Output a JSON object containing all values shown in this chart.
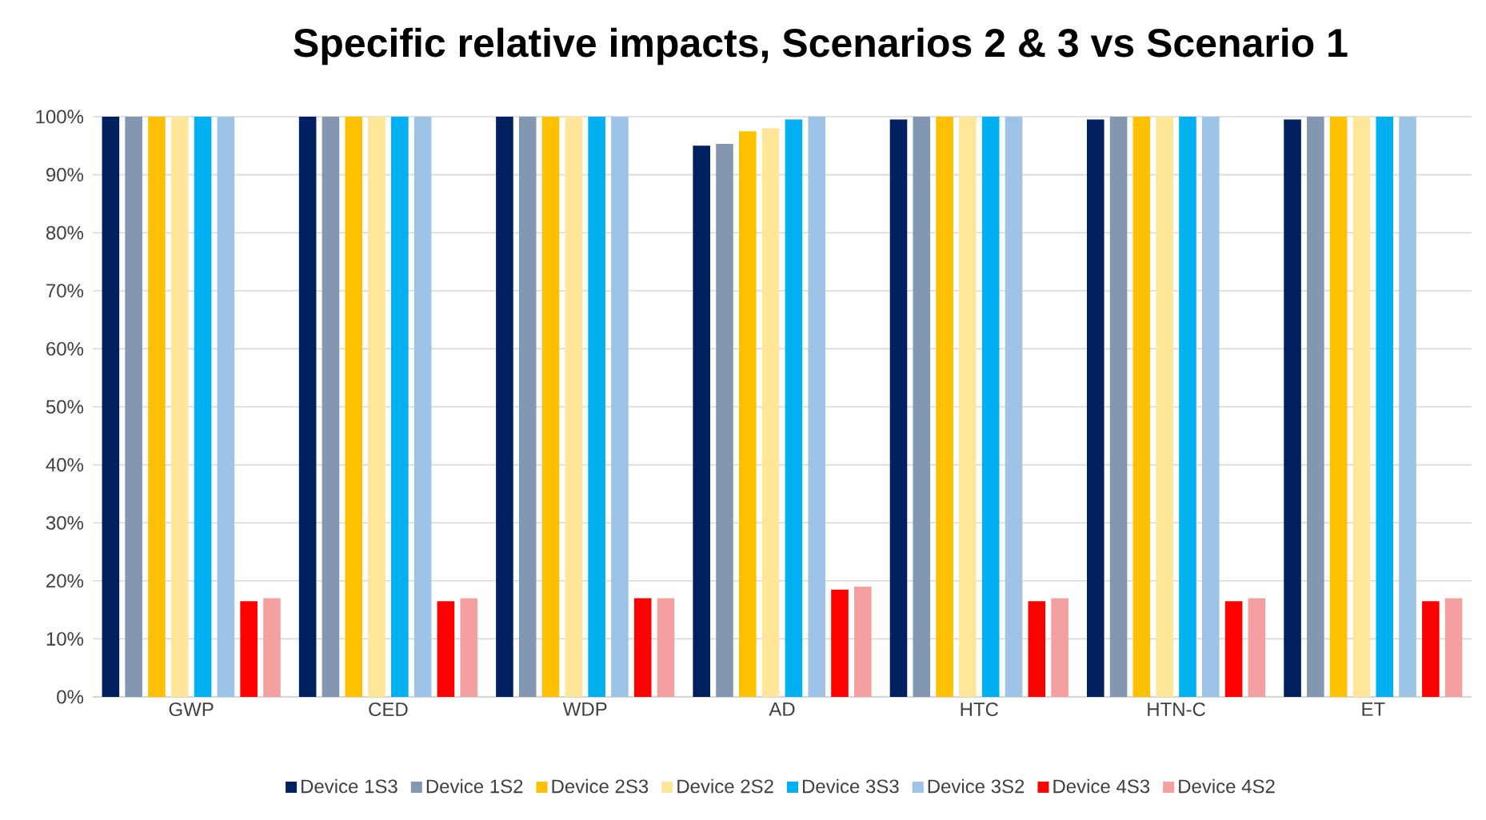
{
  "chart_data": {
    "type": "bar",
    "title": "Specific relative impacts, Scenarios 2 & 3 vs Scenario 1",
    "categories": [
      "GWP",
      "CED",
      "WDP",
      "AD",
      "HTC",
      "HTN-C",
      "ET"
    ],
    "series": [
      {
        "name": "Device 1S3",
        "color": "#002060",
        "values": [
          100,
          100,
          100,
          95,
          99.5,
          99.5,
          99.5
        ]
      },
      {
        "name": "Device 1S2",
        "color": "#8497b0",
        "values": [
          100,
          100,
          100,
          95.3,
          100,
          100,
          100
        ]
      },
      {
        "name": "Device 2S3",
        "color": "#ffc000",
        "values": [
          100,
          100,
          100,
          97.5,
          100,
          100,
          100
        ]
      },
      {
        "name": "Device 2S2",
        "color": "#ffe699",
        "values": [
          100,
          100,
          100,
          98,
          100,
          100,
          100
        ]
      },
      {
        "name": "Device 3S3",
        "color": "#00b0f0",
        "values": [
          100,
          100,
          100,
          99.5,
          100,
          100,
          100
        ]
      },
      {
        "name": "Device 3S2",
        "color": "#9dc3e6",
        "values": [
          100,
          100,
          100,
          100,
          100,
          100,
          100
        ]
      },
      {
        "name": "Device 4S3",
        "color": "#ff0000",
        "values": [
          16.5,
          16.5,
          17,
          18.5,
          16.5,
          16.5,
          16.5
        ]
      },
      {
        "name": "Device 4S2",
        "color": "#f4a0a0",
        "values": [
          17,
          17,
          17,
          19,
          17,
          17,
          17
        ]
      }
    ],
    "ylim": [
      0,
      100
    ],
    "yticks": [
      {
        "value": 0,
        "label": "0%"
      },
      {
        "value": 10,
        "label": "10%"
      },
      {
        "value": 20,
        "label": "20%"
      },
      {
        "value": 30,
        "label": "30%"
      },
      {
        "value": 40,
        "label": "40%"
      },
      {
        "value": 50,
        "label": "50%"
      },
      {
        "value": 60,
        "label": "60%"
      },
      {
        "value": 70,
        "label": "70%"
      },
      {
        "value": 80,
        "label": "80%"
      },
      {
        "value": 90,
        "label": "90%"
      },
      {
        "value": 100,
        "label": "100%"
      }
    ],
    "grid": "y",
    "legend": "bottom"
  }
}
